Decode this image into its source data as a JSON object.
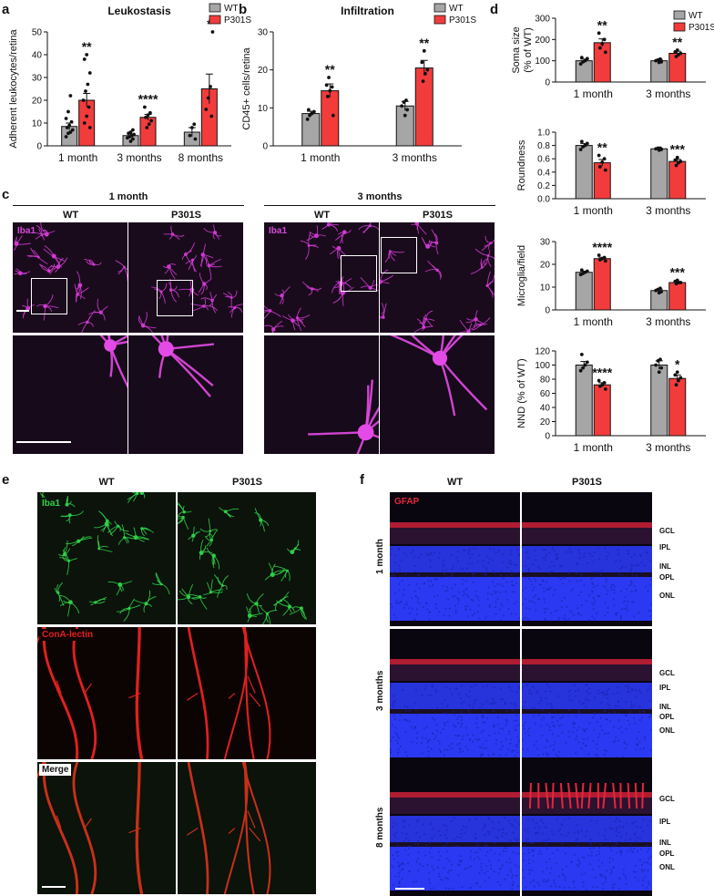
{
  "panels": {
    "a": "a",
    "b": "b",
    "c": "c",
    "d": "d",
    "e": "e",
    "f": "f"
  },
  "legend": {
    "wt": "WT",
    "p301s": "P301S"
  },
  "colors": {
    "wt": "#a6a6a6",
    "p301s": "#f23c3c",
    "iba1_magenta": "#d54ad8",
    "iba1_green": "#2ed046",
    "conA_red": "#e02020",
    "gfap_red": "#e8243c",
    "dapi_blue": "#2d3cff"
  },
  "chart_data": [
    {
      "id": "a",
      "type": "bar",
      "title": "Leukostasis",
      "ylabel": "Adherent leukocytes/retina",
      "ylim": [
        0,
        50
      ],
      "yticks": [
        0,
        10,
        20,
        30,
        40,
        50
      ],
      "categories": [
        "1 month",
        "3 months",
        "8 months"
      ],
      "series": [
        {
          "name": "WT",
          "values": [
            8.5,
            4.5,
            6
          ],
          "sem": [
            1.5,
            0.7,
            2
          ],
          "points": [
            [
              4.0,
              5.5,
              6.0,
              7.0,
              8.0,
              9.0,
              10.5,
              12.0,
              15.0,
              22.0
            ],
            [
              2.0,
              3.0,
              3.5,
              4.0,
              4.5,
              5.0,
              5.5,
              6.0,
              7.0
            ],
            [
              3.0,
              4.5,
              8.0,
              9.5
            ]
          ]
        },
        {
          "name": "P301S",
          "values": [
            20,
            12.5,
            25
          ],
          "sem": [
            3,
            1.3,
            6.5
          ],
          "points": [
            [
              8.0,
              10.0,
              13.0,
              17.0,
              20.0,
              24.0,
              27.0,
              32.0,
              38.0,
              40.0
            ],
            [
              8.0,
              9.5,
              11.0,
              12.5,
              13.5,
              14.5,
              17.0
            ],
            [
              13.0,
              16.0,
              21.0,
              26.0,
              50.0
            ]
          ]
        }
      ],
      "significance": [
        "**",
        "****",
        "*"
      ]
    },
    {
      "id": "b",
      "type": "bar",
      "title": "Infiltration",
      "ylabel": "CD45+ cells/retina",
      "ylim": [
        0,
        30
      ],
      "yticks": [
        0,
        10,
        20,
        30
      ],
      "categories": [
        "1 month",
        "3 months"
      ],
      "series": [
        {
          "name": "WT",
          "values": [
            8.5,
            10.5
          ],
          "sem": [
            0.6,
            1.2
          ],
          "points": [
            [
              7.0,
              8.0,
              8.5,
              9.0,
              9.5
            ],
            [
              8.0,
              9.5,
              10.5,
              11.5,
              12.0
            ]
          ]
        },
        {
          "name": "P301S",
          "values": [
            14.5,
            20.5
          ],
          "sem": [
            1.8,
            2
          ],
          "points": [
            [
              8.0,
              13.0,
              14.5,
              15.5,
              16.0,
              18.0
            ],
            [
              17.0,
              19.0,
              20.0,
              22.0,
              25.0
            ]
          ]
        }
      ],
      "significance": [
        "**",
        "**"
      ]
    },
    {
      "id": "d1",
      "type": "bar",
      "title": "",
      "ylabel": "Soma size (% of WT)",
      "ylim": [
        0,
        300
      ],
      "yticks": [
        0,
        100,
        200,
        300
      ],
      "categories": [
        "1 month",
        "3 months"
      ],
      "series": [
        {
          "name": "WT",
          "values": [
            100,
            100
          ],
          "sem": [
            8,
            6
          ],
          "points": [
            [
              85,
              95,
              100,
              110,
              115
            ],
            [
              92,
              95,
              100,
              104,
              108
            ]
          ]
        },
        {
          "name": "P301S",
          "values": [
            185,
            135
          ],
          "sem": [
            18,
            10
          ],
          "points": [
            [
              140,
              160,
              180,
              200,
              230
            ],
            [
              120,
              128,
              135,
              142,
              150
            ]
          ]
        }
      ],
      "significance": [
        "**",
        "**"
      ]
    },
    {
      "id": "d2",
      "type": "bar",
      "title": "",
      "ylabel": "Roundness",
      "ylim": [
        0,
        1.0
      ],
      "yticks": [
        0.0,
        0.2,
        0.4,
        0.6,
        0.8,
        1.0
      ],
      "categories": [
        "1 month",
        "3 months"
      ],
      "series": [
        {
          "name": "WT",
          "values": [
            0.8,
            0.75
          ],
          "sem": [
            0.03,
            0.01
          ],
          "points": [
            [
              0.74,
              0.78,
              0.8,
              0.83,
              0.86
            ],
            [
              0.73,
              0.74,
              0.75,
              0.76,
              0.76
            ]
          ]
        },
        {
          "name": "P301S",
          "values": [
            0.54,
            0.56
          ],
          "sem": [
            0.05,
            0.03
          ],
          "points": [
            [
              0.43,
              0.48,
              0.55,
              0.6,
              0.65
            ],
            [
              0.5,
              0.54,
              0.56,
              0.58,
              0.62
            ]
          ]
        }
      ],
      "significance": [
        "**",
        "***"
      ]
    },
    {
      "id": "d3",
      "type": "bar",
      "title": "",
      "ylabel": "Microglia/field",
      "ylim": [
        0,
        30
      ],
      "yticks": [
        0,
        10,
        20,
        30
      ],
      "categories": [
        "1 month",
        "3 months"
      ],
      "series": [
        {
          "name": "WT",
          "values": [
            16.5,
            8.5
          ],
          "sem": [
            0.5,
            0.6
          ],
          "points": [
            [
              15.5,
              16,
              16.5,
              17,
              17.5
            ],
            [
              7.5,
              8,
              8.5,
              9,
              9.5
            ]
          ]
        },
        {
          "name": "P301S",
          "values": [
            22.5,
            12
          ],
          "sem": [
            0.6,
            0.5
          ],
          "points": [
            [
              21.5,
              22,
              22.5,
              23,
              24
            ],
            [
              11.5,
              12,
              12,
              12.5,
              13
            ]
          ]
        }
      ],
      "significance": [
        "****",
        "***"
      ]
    },
    {
      "id": "d4",
      "type": "bar",
      "title": "",
      "ylabel": "NND (% of WT)",
      "ylim": [
        0,
        120
      ],
      "yticks": [
        0,
        20,
        40,
        60,
        80,
        100,
        120
      ],
      "categories": [
        "1 month",
        "3 months"
      ],
      "series": [
        {
          "name": "WT",
          "values": [
            100,
            100
          ],
          "sem": [
            5,
            6
          ],
          "points": [
            [
              92,
              96,
              100,
              104,
              115
            ],
            [
              90,
              96,
              100,
              106,
              108
            ]
          ]
        },
        {
          "name": "P301S",
          "values": [
            72,
            81
          ],
          "sem": [
            3,
            5
          ],
          "points": [
            [
              66,
              70,
              72,
              75,
              78
            ],
            [
              72,
              78,
              82,
              86,
              90
            ]
          ]
        }
      ],
      "significance": [
        "****",
        "*"
      ]
    }
  ],
  "panel_c": {
    "groups": [
      "1 month",
      "3 months"
    ],
    "cols": [
      "WT",
      "P301S"
    ],
    "stain": "Iba1"
  },
  "panel_e": {
    "cols": [
      "WT",
      "P301S"
    ],
    "rows": [
      "Iba1",
      "ConA-lectin",
      "Merge"
    ]
  },
  "panel_f": {
    "cols": [
      "WT",
      "P301S"
    ],
    "stain": "GFAP",
    "rows": [
      "1 month",
      "3 months",
      "8 months"
    ],
    "layers": [
      "GCL",
      "IPL",
      "INL",
      "OPL",
      "ONL"
    ]
  }
}
